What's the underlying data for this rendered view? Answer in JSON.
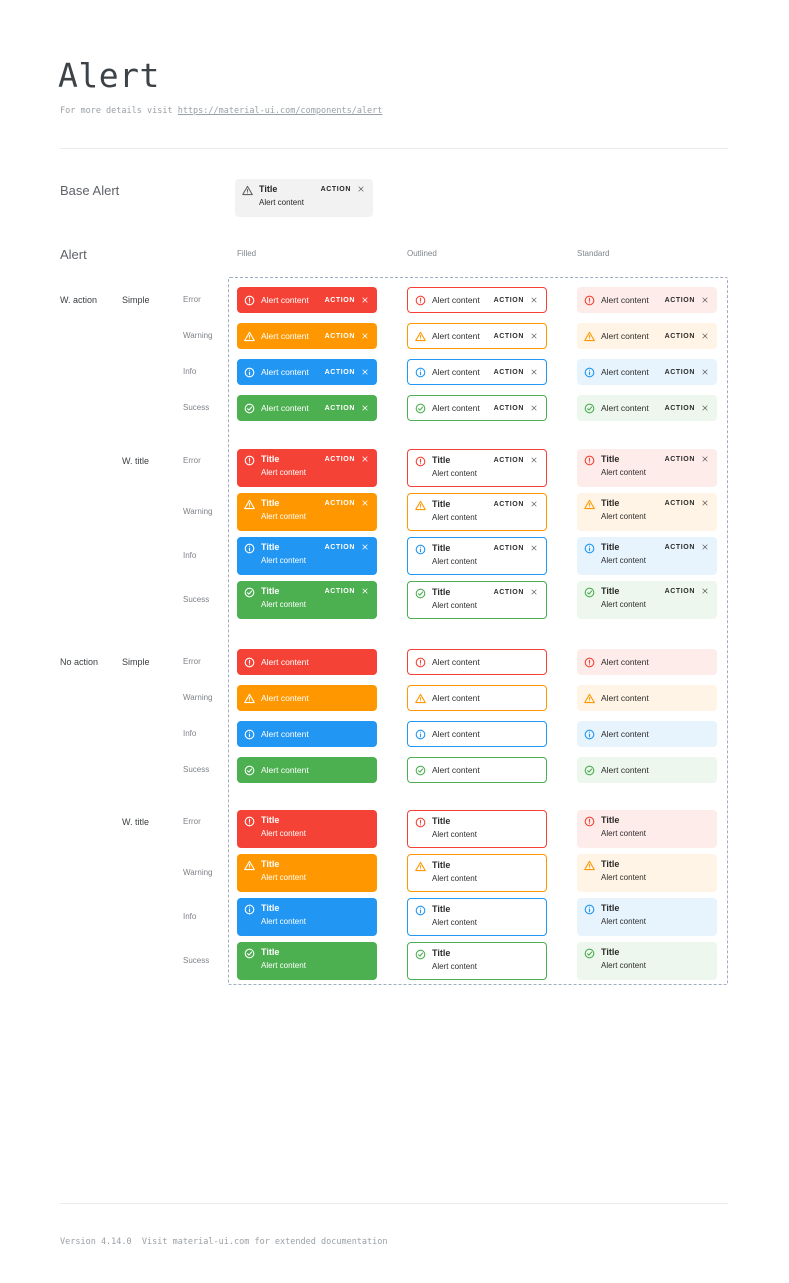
{
  "page": {
    "title": "Alert",
    "subtitle_prefix": "For more details visit ",
    "subtitle_link": "https://material-ui.com/components/alert",
    "footer": "Version 4.14.0  Visit material-ui.com for extended documentation"
  },
  "base_alert": {
    "section_label": "Base Alert",
    "title": "Title",
    "content": "Alert content",
    "action": "ACTION",
    "icon": "warning-icon",
    "bg": "#f2f2f2",
    "icon_color": "#5f6368",
    "text_color": "rgba(0,0,0,0.85)"
  },
  "alert_section": {
    "label": "Alert",
    "columns": [
      "Filled",
      "Outlined",
      "Standard"
    ],
    "groups": [
      {
        "label": "W. action",
        "subgroups": [
          {
            "label": "Simple"
          },
          {
            "label": "W. title"
          }
        ]
      },
      {
        "label": "No action",
        "subgroups": [
          {
            "label": "Simple"
          },
          {
            "label": "W. title"
          }
        ]
      }
    ],
    "severities": [
      {
        "id": "error",
        "label": "Error",
        "icon": "error-icon",
        "main": "#f44336",
        "standard_bg": "#fdecea"
      },
      {
        "id": "warning",
        "label": "Warning",
        "icon": "warning-icon",
        "main": "#ff9800",
        "standard_bg": "#fff4e5"
      },
      {
        "id": "info",
        "label": "Info",
        "icon": "info-icon",
        "main": "#2196f3",
        "standard_bg": "#e8f4fd"
      },
      {
        "id": "success",
        "label": "Sucess",
        "icon": "success-icon",
        "main": "#4caf50",
        "standard_bg": "#edf7ed"
      }
    ],
    "alert_text": {
      "title": "Title",
      "content": "Alert content",
      "action": "ACTION"
    }
  },
  "colors": {
    "dashed_border": "#9fadbf",
    "divider": "#e8eaed",
    "filled_text": "#ffffff",
    "dark_text": "rgba(0,0,0,0.83)",
    "heading": "#3d4247",
    "muted": "#9aa0a6"
  }
}
